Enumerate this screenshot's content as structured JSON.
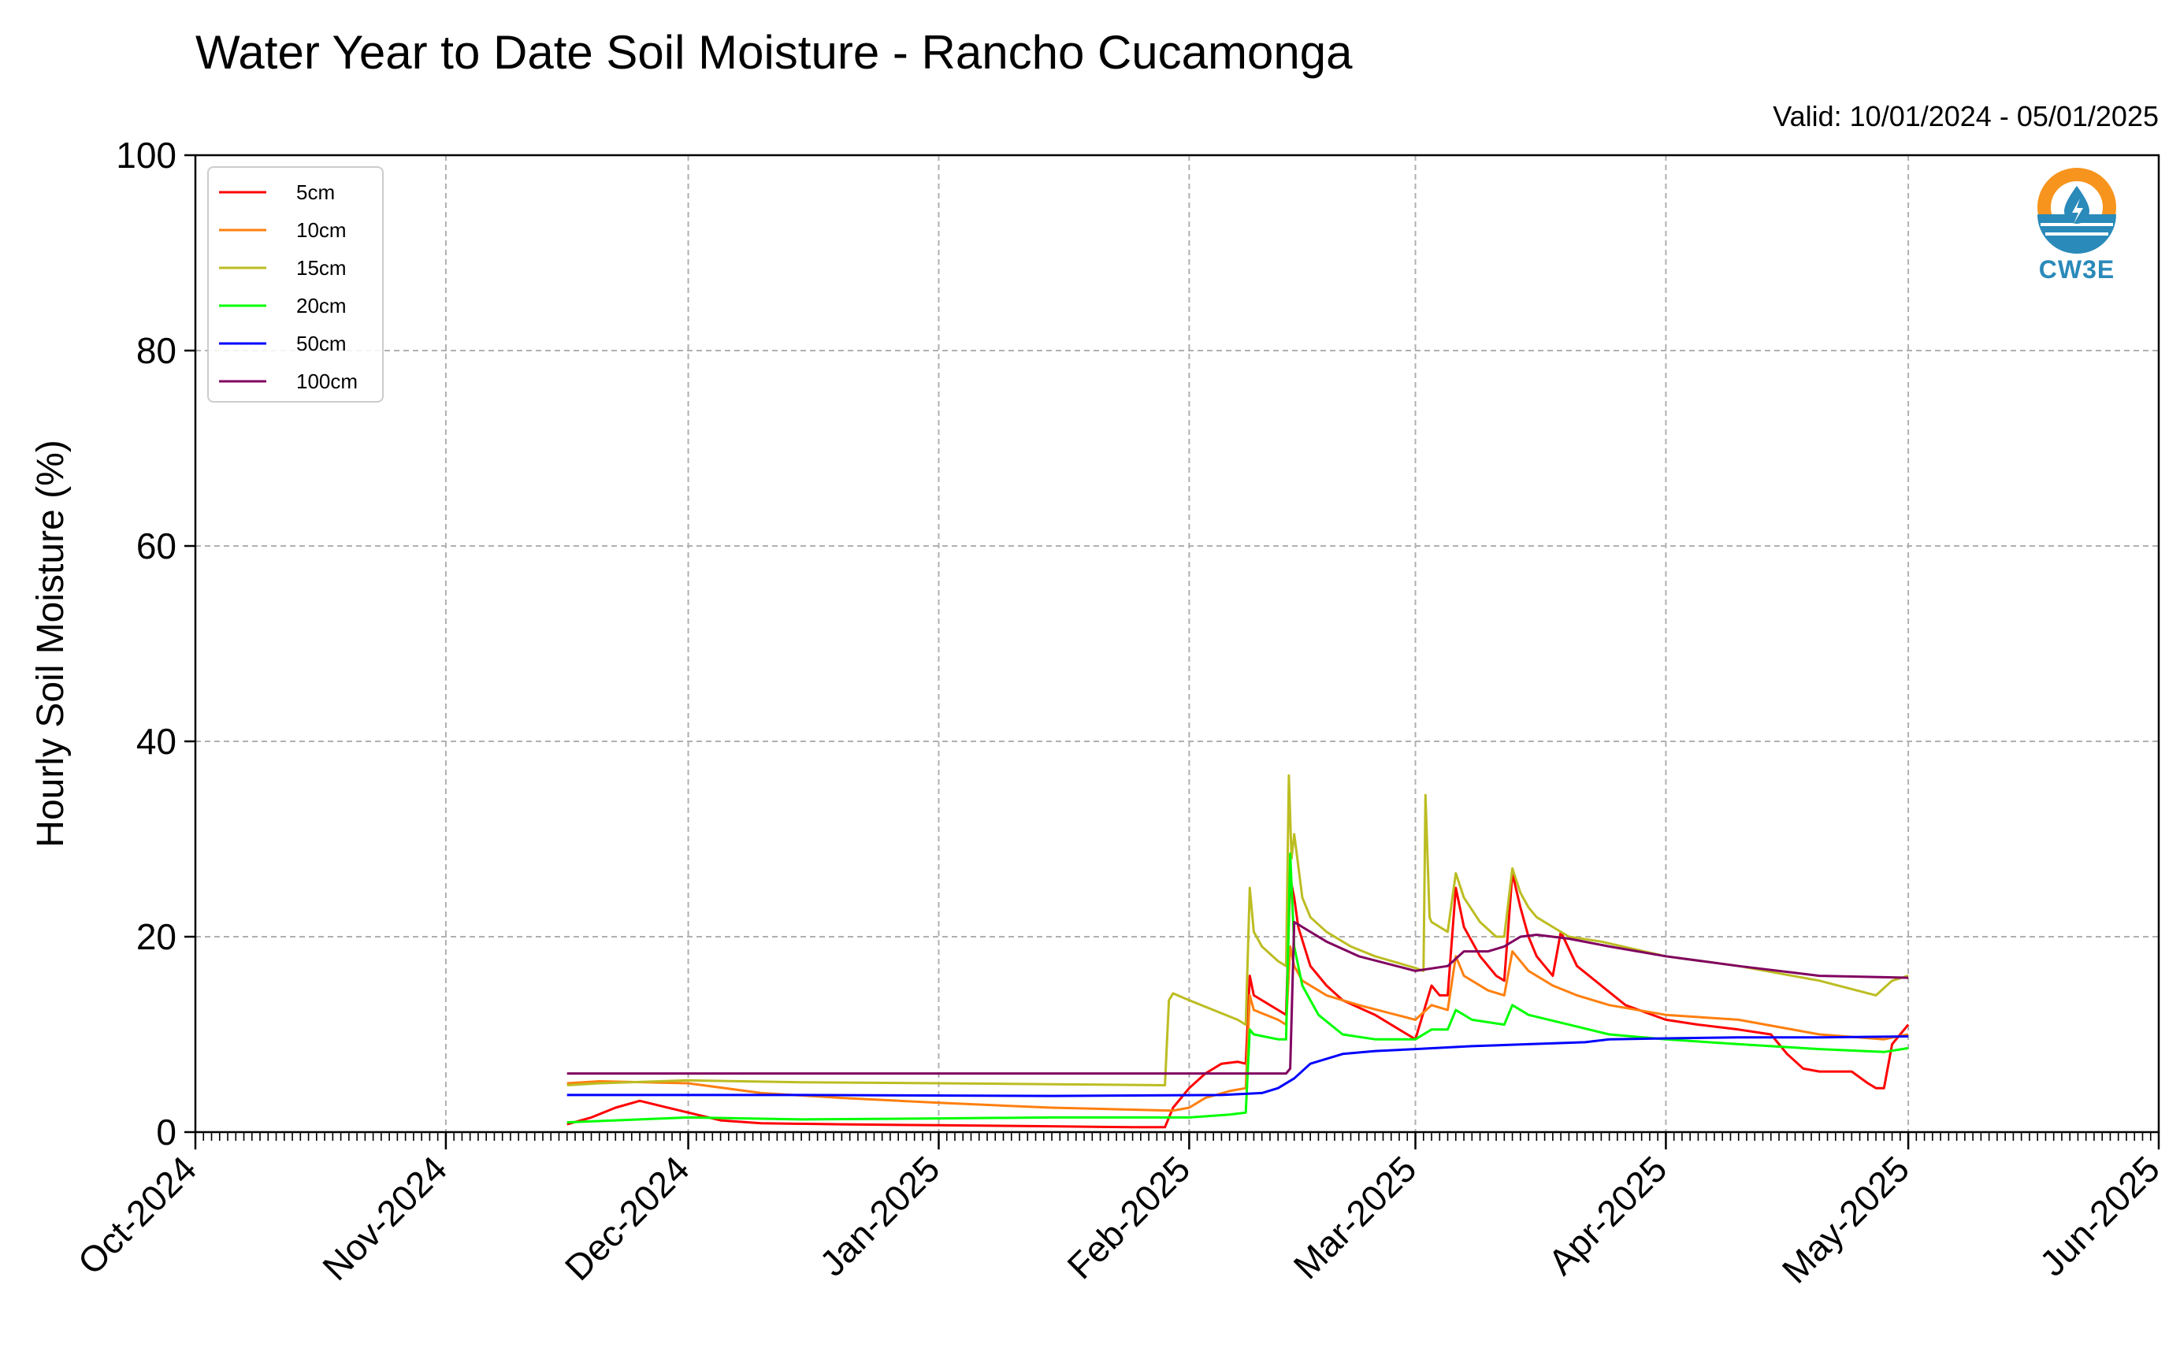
{
  "chart_data": {
    "type": "line",
    "title": "Water Year to Date Soil Moisture - Rancho Cucamonga",
    "subtitle": "Valid: 10/01/2024 - 05/01/2025",
    "xlabel": "",
    "ylabel": "Hourly Soil Moisture (%)",
    "xlim": [
      "2024-10-01",
      "2025-06-01"
    ],
    "ylim": [
      0,
      100
    ],
    "yticks": [
      0,
      20,
      40,
      60,
      80,
      100
    ],
    "xticks": [
      {
        "date": "2024-10-01",
        "label": "Oct-2024"
      },
      {
        "date": "2024-11-01",
        "label": "Nov-2024"
      },
      {
        "date": "2024-12-01",
        "label": "Dec-2024"
      },
      {
        "date": "2025-01-01",
        "label": "Jan-2025"
      },
      {
        "date": "2025-02-01",
        "label": "Feb-2025"
      },
      {
        "date": "2025-03-01",
        "label": "Mar-2025"
      },
      {
        "date": "2025-04-01",
        "label": "Apr-2025"
      },
      {
        "date": "2025-05-01",
        "label": "May-2025"
      },
      {
        "date": "2025-06-01",
        "label": "Jun-2025"
      }
    ],
    "grid": true,
    "legend_position": "top-left",
    "series": [
      {
        "name": "5cm",
        "color": "#ff0000",
        "points": [
          [
            "2024-11-16",
            0.8
          ],
          [
            "2024-11-19",
            1.5
          ],
          [
            "2024-11-22",
            2.5
          ],
          [
            "2024-11-25",
            3.2
          ],
          [
            "2024-11-28",
            2.6
          ],
          [
            "2024-12-01",
            2.0
          ],
          [
            "2024-12-05",
            1.2
          ],
          [
            "2024-12-10",
            0.9
          ],
          [
            "2024-12-20",
            0.8
          ],
          [
            "2025-01-01",
            0.7
          ],
          [
            "2025-01-15",
            0.6
          ],
          [
            "2025-01-25",
            0.5
          ],
          [
            "2025-01-29",
            0.5
          ],
          [
            "2025-01-30",
            2.5
          ],
          [
            "2025-02-01",
            4.5
          ],
          [
            "2025-02-03",
            6.0
          ],
          [
            "2025-02-05",
            7.0
          ],
          [
            "2025-02-07",
            7.2
          ],
          [
            "2025-02-08",
            7.0
          ],
          [
            "2025-02-08T12",
            16.0
          ],
          [
            "2025-02-09",
            14.0
          ],
          [
            "2025-02-10",
            13.5
          ],
          [
            "2025-02-12",
            12.5
          ],
          [
            "2025-02-13",
            12.0
          ],
          [
            "2025-02-13T12",
            26.0
          ],
          [
            "2025-02-14",
            24.0
          ],
          [
            "2025-02-14T12",
            21.0
          ],
          [
            "2025-02-16",
            17.0
          ],
          [
            "2025-02-18",
            15.0
          ],
          [
            "2025-02-20",
            13.5
          ],
          [
            "2025-02-24",
            12.0
          ],
          [
            "2025-02-28",
            10.0
          ],
          [
            "2025-03-01",
            9.5
          ],
          [
            "2025-03-03",
            15.0
          ],
          [
            "2025-03-04",
            14.0
          ],
          [
            "2025-03-05",
            14.0
          ],
          [
            "2025-03-06",
            25.0
          ],
          [
            "2025-03-07",
            21.0
          ],
          [
            "2025-03-09",
            18.0
          ],
          [
            "2025-03-11",
            16.0
          ],
          [
            "2025-03-12",
            15.5
          ],
          [
            "2025-03-13",
            26.5
          ],
          [
            "2025-03-14",
            23.0
          ],
          [
            "2025-03-15",
            20.0
          ],
          [
            "2025-03-16",
            18.0
          ],
          [
            "2025-03-17",
            17.0
          ],
          [
            "2025-03-18",
            16.0
          ],
          [
            "2025-03-19",
            20.5
          ],
          [
            "2025-03-21",
            17.0
          ],
          [
            "2025-03-24",
            15.0
          ],
          [
            "2025-03-27",
            13.0
          ],
          [
            "2025-04-01",
            11.5
          ],
          [
            "2025-04-05",
            11.0
          ],
          [
            "2025-04-10",
            10.5
          ],
          [
            "2025-04-14",
            10.0
          ],
          [
            "2025-04-16",
            8.0
          ],
          [
            "2025-04-18",
            6.5
          ],
          [
            "2025-04-20",
            6.2
          ],
          [
            "2025-04-24",
            6.2
          ],
          [
            "2025-04-26",
            5.0
          ],
          [
            "2025-04-27",
            4.5
          ],
          [
            "2025-04-28",
            4.5
          ],
          [
            "2025-04-29",
            9.0
          ],
          [
            "2025-05-01",
            11.0
          ]
        ]
      },
      {
        "name": "10cm",
        "color": "#ff7f0e",
        "points": [
          [
            "2024-11-16",
            5.0
          ],
          [
            "2024-11-20",
            5.2
          ],
          [
            "2024-12-01",
            5.0
          ],
          [
            "2024-12-10",
            4.0
          ],
          [
            "2024-12-20",
            3.5
          ],
          [
            "2025-01-01",
            3.0
          ],
          [
            "2025-01-15",
            2.5
          ],
          [
            "2025-01-25",
            2.3
          ],
          [
            "2025-01-30",
            2.2
          ],
          [
            "2025-02-01",
            2.5
          ],
          [
            "2025-02-03",
            3.5
          ],
          [
            "2025-02-06",
            4.2
          ],
          [
            "2025-02-08",
            4.5
          ],
          [
            "2025-02-08T12",
            14.0
          ],
          [
            "2025-02-09",
            12.5
          ],
          [
            "2025-02-12",
            11.5
          ],
          [
            "2025-02-13",
            11.0
          ],
          [
            "2025-02-13T12",
            19.0
          ],
          [
            "2025-02-14",
            17.0
          ],
          [
            "2025-02-15",
            15.5
          ],
          [
            "2025-02-18",
            14.0
          ],
          [
            "2025-02-22",
            13.0
          ],
          [
            "2025-03-01",
            11.5
          ],
          [
            "2025-03-03",
            13.0
          ],
          [
            "2025-03-05",
            12.5
          ],
          [
            "2025-03-06",
            18.0
          ],
          [
            "2025-03-07",
            16.0
          ],
          [
            "2025-03-10",
            14.5
          ],
          [
            "2025-03-12",
            14.0
          ],
          [
            "2025-03-13",
            18.5
          ],
          [
            "2025-03-15",
            16.5
          ],
          [
            "2025-03-18",
            15.0
          ],
          [
            "2025-03-21",
            14.0
          ],
          [
            "2025-03-25",
            13.0
          ],
          [
            "2025-04-01",
            12.0
          ],
          [
            "2025-04-10",
            11.5
          ],
          [
            "2025-04-20",
            10.0
          ],
          [
            "2025-04-28",
            9.5
          ],
          [
            "2025-05-01",
            10.0
          ]
        ]
      },
      {
        "name": "15cm",
        "color": "#bcbd22",
        "points": [
          [
            "2024-11-16",
            4.8
          ],
          [
            "2024-11-20",
            5.0
          ],
          [
            "2024-12-01",
            5.3
          ],
          [
            "2024-12-15",
            5.1
          ],
          [
            "2025-01-01",
            5.0
          ],
          [
            "2025-01-15",
            4.9
          ],
          [
            "2025-01-29",
            4.8
          ],
          [
            "2025-01-29T12",
            13.5
          ],
          [
            "2025-01-30",
            14.2
          ],
          [
            "2025-02-01",
            13.5
          ],
          [
            "2025-02-04",
            12.5
          ],
          [
            "2025-02-07",
            11.5
          ],
          [
            "2025-02-08",
            11.0
          ],
          [
            "2025-02-08T12",
            25.0
          ],
          [
            "2025-02-09",
            20.5
          ],
          [
            "2025-02-10",
            19.0
          ],
          [
            "2025-02-12",
            17.5
          ],
          [
            "2025-02-13",
            17.0
          ],
          [
            "2025-02-13T08",
            36.5
          ],
          [
            "2025-02-13T16",
            28.0
          ],
          [
            "2025-02-14",
            30.5
          ],
          [
            "2025-02-15",
            24.0
          ],
          [
            "2025-02-16",
            22.0
          ],
          [
            "2025-02-18",
            20.5
          ],
          [
            "2025-02-21",
            19.0
          ],
          [
            "2025-02-24",
            18.0
          ],
          [
            "2025-03-01",
            16.8
          ],
          [
            "2025-03-02",
            16.5
          ],
          [
            "2025-03-02T06",
            34.5
          ],
          [
            "2025-03-02T18",
            22.0
          ],
          [
            "2025-03-03",
            21.5
          ],
          [
            "2025-03-05",
            20.5
          ],
          [
            "2025-03-06",
            26.5
          ],
          [
            "2025-03-07",
            24.0
          ],
          [
            "2025-03-09",
            21.5
          ],
          [
            "2025-03-11",
            20.0
          ],
          [
            "2025-03-12",
            20.0
          ],
          [
            "2025-03-13",
            27.0
          ],
          [
            "2025-03-14",
            24.5
          ],
          [
            "2025-03-15",
            23.0
          ],
          [
            "2025-03-16",
            22.0
          ],
          [
            "2025-03-18",
            21.0
          ],
          [
            "2025-03-20",
            20.0
          ],
          [
            "2025-03-24",
            19.5
          ],
          [
            "2025-04-01",
            18.0
          ],
          [
            "2025-04-10",
            17.0
          ],
          [
            "2025-04-20",
            15.5
          ],
          [
            "2025-04-27",
            14.0
          ],
          [
            "2025-04-29",
            15.5
          ],
          [
            "2025-05-01",
            16.0
          ]
        ]
      },
      {
        "name": "20cm",
        "color": "#00ff00",
        "points": [
          [
            "2024-11-16",
            1.0
          ],
          [
            "2024-11-22",
            1.2
          ],
          [
            "2024-12-01",
            1.5
          ],
          [
            "2024-12-15",
            1.3
          ],
          [
            "2025-01-01",
            1.4
          ],
          [
            "2025-01-15",
            1.5
          ],
          [
            "2025-02-01",
            1.5
          ],
          [
            "2025-02-06",
            1.8
          ],
          [
            "2025-02-08",
            2.0
          ],
          [
            "2025-02-08T12",
            10.5
          ],
          [
            "2025-02-09",
            10.0
          ],
          [
            "2025-02-12",
            9.5
          ],
          [
            "2025-02-13",
            9.5
          ],
          [
            "2025-02-13T12",
            28.5
          ],
          [
            "2025-02-14",
            19.0
          ],
          [
            "2025-02-15",
            15.0
          ],
          [
            "2025-02-17",
            12.0
          ],
          [
            "2025-02-20",
            10.0
          ],
          [
            "2025-02-24",
            9.5
          ],
          [
            "2025-03-01",
            9.5
          ],
          [
            "2025-03-03",
            10.5
          ],
          [
            "2025-03-05",
            10.5
          ],
          [
            "2025-03-06",
            12.5
          ],
          [
            "2025-03-08",
            11.5
          ],
          [
            "2025-03-12",
            11.0
          ],
          [
            "2025-03-13",
            13.0
          ],
          [
            "2025-03-15",
            12.0
          ],
          [
            "2025-03-20",
            11.0
          ],
          [
            "2025-03-25",
            10.0
          ],
          [
            "2025-04-01",
            9.5
          ],
          [
            "2025-04-10",
            9.0
          ],
          [
            "2025-04-20",
            8.5
          ],
          [
            "2025-04-28",
            8.2
          ],
          [
            "2025-05-01",
            8.6
          ]
        ]
      },
      {
        "name": "50cm",
        "color": "#0000ff",
        "points": [
          [
            "2024-11-16",
            3.8
          ],
          [
            "2024-12-15",
            3.8
          ],
          [
            "2025-01-15",
            3.7
          ],
          [
            "2025-02-05",
            3.8
          ],
          [
            "2025-02-10",
            4.0
          ],
          [
            "2025-02-12",
            4.5
          ],
          [
            "2025-02-14",
            5.5
          ],
          [
            "2025-02-16",
            7.0
          ],
          [
            "2025-02-20",
            8.0
          ],
          [
            "2025-02-24",
            8.3
          ],
          [
            "2025-03-01",
            8.5
          ],
          [
            "2025-03-08",
            8.8
          ],
          [
            "2025-03-15",
            9.0
          ],
          [
            "2025-03-22",
            9.2
          ],
          [
            "2025-03-25",
            9.5
          ],
          [
            "2025-04-01",
            9.6
          ],
          [
            "2025-04-10",
            9.7
          ],
          [
            "2025-04-20",
            9.7
          ],
          [
            "2025-05-01",
            9.8
          ]
        ]
      },
      {
        "name": "100cm",
        "color": "#800060",
        "points": [
          [
            "2024-11-16",
            6.0
          ],
          [
            "2024-12-01",
            6.0
          ],
          [
            "2025-01-01",
            6.0
          ],
          [
            "2025-02-01",
            6.0
          ],
          [
            "2025-02-13",
            6.0
          ],
          [
            "2025-02-13T12",
            6.5
          ],
          [
            "2025-02-14",
            21.5
          ],
          [
            "2025-02-15",
            21.0
          ],
          [
            "2025-02-18",
            19.5
          ],
          [
            "2025-02-22",
            18.0
          ],
          [
            "2025-03-01",
            16.5
          ],
          [
            "2025-03-05",
            17.0
          ],
          [
            "2025-03-07",
            18.5
          ],
          [
            "2025-03-10",
            18.5
          ],
          [
            "2025-03-12",
            19.0
          ],
          [
            "2025-03-14",
            20.0
          ],
          [
            "2025-03-16",
            20.2
          ],
          [
            "2025-03-20",
            19.8
          ],
          [
            "2025-03-25",
            19.0
          ],
          [
            "2025-04-01",
            18.0
          ],
          [
            "2025-04-10",
            17.0
          ],
          [
            "2025-04-20",
            16.0
          ],
          [
            "2025-05-01",
            15.8
          ]
        ]
      }
    ]
  },
  "logo": {
    "text": "CW3E",
    "primary_color": "#f7941d",
    "secondary_color": "#2a8ab9"
  }
}
